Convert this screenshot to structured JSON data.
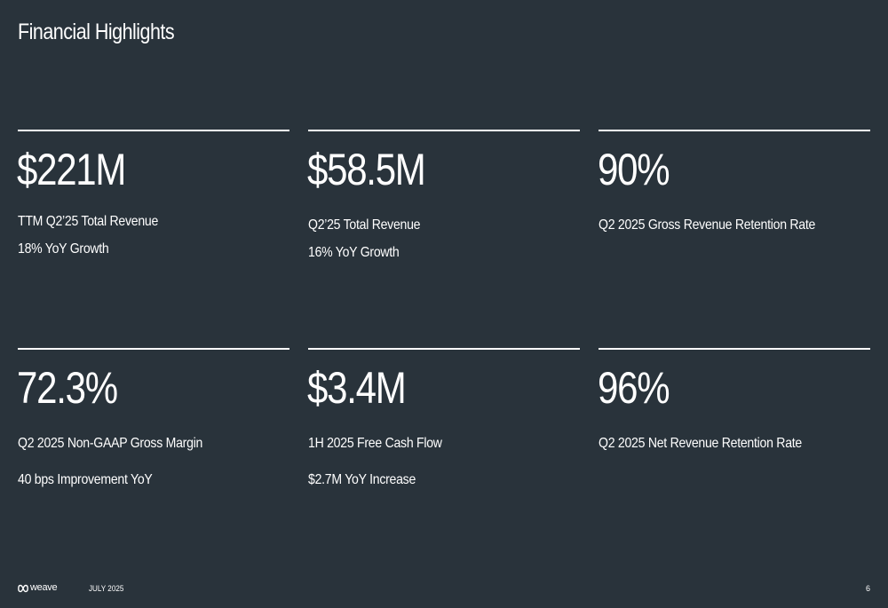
{
  "slide": {
    "title": "Financial Highlights"
  },
  "metrics": [
    {
      "value": "$221M",
      "line1": "TTM Q2’25 Total Revenue",
      "line2": "18% YoY Growth"
    },
    {
      "value": "$58.5M",
      "line1": "Q2’25 Total Revenue",
      "line2": "16% YoY Growth"
    },
    {
      "value": "90%",
      "line1": "Q2 2025 Gross Revenue Retention Rate",
      "line2": ""
    },
    {
      "value": "72.3%",
      "line1": "Q2 2025 Non-GAAP Gross Margin",
      "line2": "40 bps Improvement YoY"
    },
    {
      "value": "$3.4M",
      "line1": "1H 2025 Free Cash Flow",
      "line2": "$2.7M YoY Increase"
    },
    {
      "value": "96%",
      "line1": "Q2 2025 Net Revenue Retention Rate",
      "line2": ""
    }
  ],
  "footer": {
    "brand": "weave",
    "brand_icon": "weave-logo-icon",
    "date": "JULY 2025",
    "page_number": "6"
  },
  "colors": {
    "background": "#29333b",
    "text": "#ffffff"
  }
}
